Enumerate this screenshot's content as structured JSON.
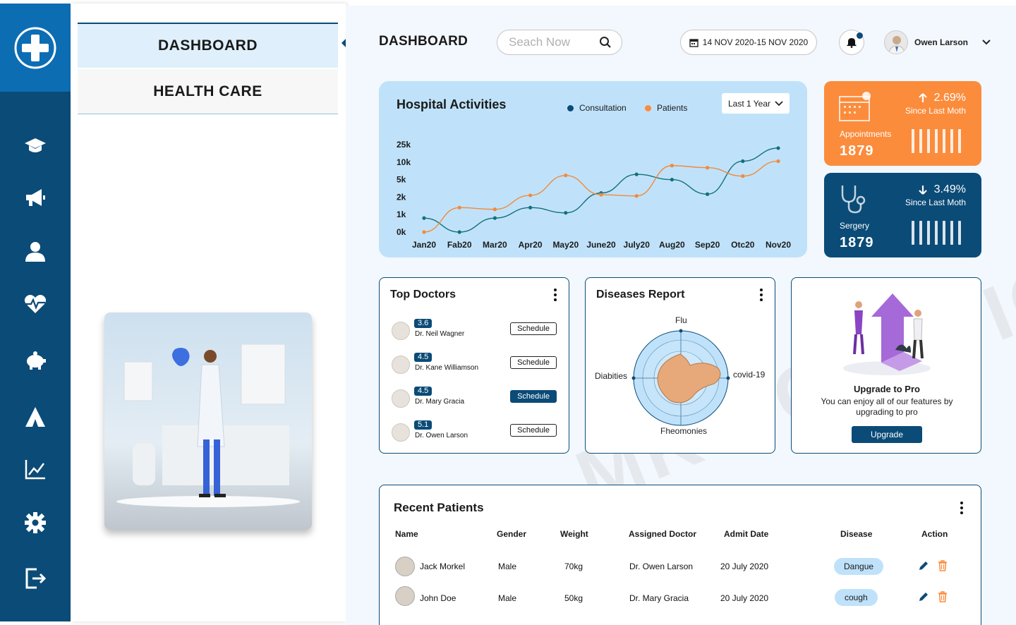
{
  "rail": {
    "items": [
      {
        "icon": "plus-logo-icon"
      },
      {
        "icon": "graduation-cap-icon"
      },
      {
        "icon": "megaphone-icon"
      },
      {
        "icon": "user-icon"
      },
      {
        "icon": "heartbeat-icon"
      },
      {
        "icon": "piggy-bank-icon"
      },
      {
        "icon": "tent-icon"
      },
      {
        "icon": "line-chart-icon"
      },
      {
        "icon": "gear-icon"
      },
      {
        "icon": "logout-icon"
      }
    ]
  },
  "panel": {
    "tabs": [
      {
        "label": "DASHBOARD"
      },
      {
        "label": "HEALTH CARE"
      }
    ]
  },
  "header": {
    "title": "DASHBOARD",
    "search_placeholder": "Seach Now",
    "date_range": "14 NOV 2020-15 NOV 2020",
    "user_name": "Owen Larson"
  },
  "activity": {
    "title": "Hospital Activities",
    "legend": [
      {
        "name": "Consultation",
        "color": "#0b4b77"
      },
      {
        "name": "Patients",
        "color": "#fb8c3c"
      }
    ],
    "range": "Last 1 Year"
  },
  "chart_data": {
    "type": "line",
    "title": "Hospital Activities",
    "categories": [
      "Jan20",
      "Fab20",
      "Mar20",
      "Apr20",
      "May20",
      "June20",
      "July20",
      "Aug20",
      "Sep20",
      "Otc20",
      "Nov20"
    ],
    "y_ticks": [
      "25k",
      "10k",
      "5k",
      "2k",
      "1k",
      "0k"
    ],
    "series": [
      {
        "name": "Consultation",
        "color": "#14707a",
        "values": [
          0.8,
          0,
          0.8,
          1.4,
          1.1,
          2.7,
          6.5,
          5,
          2.5,
          10.8,
          22
        ]
      },
      {
        "name": "Patients",
        "color": "#f28a3a",
        "values": [
          0,
          1.4,
          1.3,
          2.3,
          6.2,
          2.4,
          2.2,
          9,
          8.4,
          6,
          10.8
        ]
      }
    ],
    "legend_position": "top-right",
    "grid": false
  },
  "stats": [
    {
      "icon": "calendar-icon",
      "trend": "up",
      "percent": "2.69%",
      "since": "Since Last Moth",
      "label": "Appointments",
      "value": "1879",
      "color": "#fb8c3c"
    },
    {
      "icon": "stethoscope-icon",
      "trend": "down",
      "percent": "3.49%",
      "since": "Since Last Moth",
      "label": "Sergery",
      "value": "1879",
      "color": "#0b4b77"
    }
  ],
  "top_doctors": {
    "title": "Top Doctors",
    "items": [
      {
        "rating": "3.6",
        "name": "Dr. Neil Wagner",
        "action": "Schedule",
        "primary": false
      },
      {
        "rating": "4.5",
        "name": "Dr. Kane Williamson",
        "action": "Schedule",
        "primary": false
      },
      {
        "rating": "4.5",
        "name": "Dr. Mary Gracia",
        "action": "Schedule",
        "primary": true
      },
      {
        "rating": "5.1",
        "name": "Dr. Owen Larson",
        "action": "Schedule",
        "primary": false
      }
    ]
  },
  "diseases": {
    "title": "Diseases Report",
    "labels": {
      "top": "Flu",
      "right": "covid-19",
      "bottom": "Fheomonies",
      "left": "Diabities"
    }
  },
  "upgrade": {
    "title": "Upgrade to Pro",
    "description": "You can enjoy all of our features by upgrading to pro",
    "button": "Upgrade"
  },
  "patients": {
    "title": "Recent Patients",
    "columns": [
      "Name",
      "Gender",
      "Weight",
      "Assigned Doctor",
      "Admit Date",
      "Disease",
      "Action"
    ],
    "rows": [
      {
        "name": "Jack Morkel",
        "gender": "Male",
        "weight": "70kg",
        "doctor": "Dr. Owen Larson",
        "date": "20 July 2020",
        "disease": "Dangue"
      },
      {
        "name": "John Doe",
        "gender": "Male",
        "weight": "50kg",
        "doctor": "Dr. Mary Gracia",
        "date": "20 July 2020",
        "disease": "cough"
      }
    ]
  },
  "watermark": "MK SOLUTIONS"
}
